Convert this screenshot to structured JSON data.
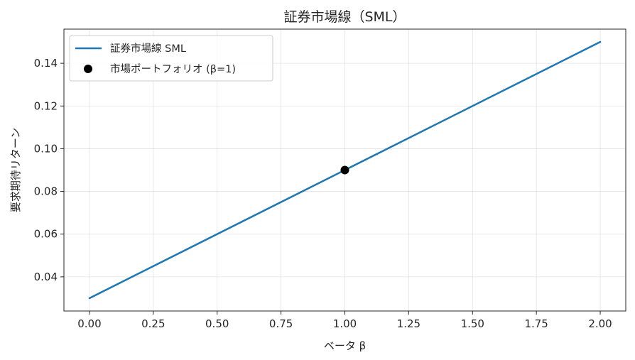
{
  "chart_data": {
    "type": "line",
    "title": "証券市場線（SML）",
    "xlabel": "ベータ β",
    "ylabel": "要求期待リターン",
    "xlim": [
      -0.1,
      2.1
    ],
    "ylim": [
      0.024,
      0.156
    ],
    "xticks": [
      0.0,
      0.25,
      0.5,
      0.75,
      1.0,
      1.25,
      1.5,
      1.75,
      2.0
    ],
    "xtick_labels": [
      "0.00",
      "0.25",
      "0.50",
      "0.75",
      "1.00",
      "1.25",
      "1.50",
      "1.75",
      "2.00"
    ],
    "yticks": [
      0.04,
      0.06,
      0.08,
      0.1,
      0.12,
      0.14
    ],
    "ytick_labels": [
      "0.04",
      "0.06",
      "0.08",
      "0.10",
      "0.12",
      "0.14"
    ],
    "grid": true,
    "legend_position": "top-left",
    "series": [
      {
        "name": "証券市場線 SML",
        "kind": "line",
        "color": "#1f77b4",
        "x": [
          0.0,
          2.0
        ],
        "y": [
          0.03,
          0.15
        ]
      },
      {
        "name": "市場ポートフォリオ (β=1)",
        "kind": "scatter",
        "color": "#000000",
        "x": [
          1.0
        ],
        "y": [
          0.09
        ]
      }
    ]
  }
}
